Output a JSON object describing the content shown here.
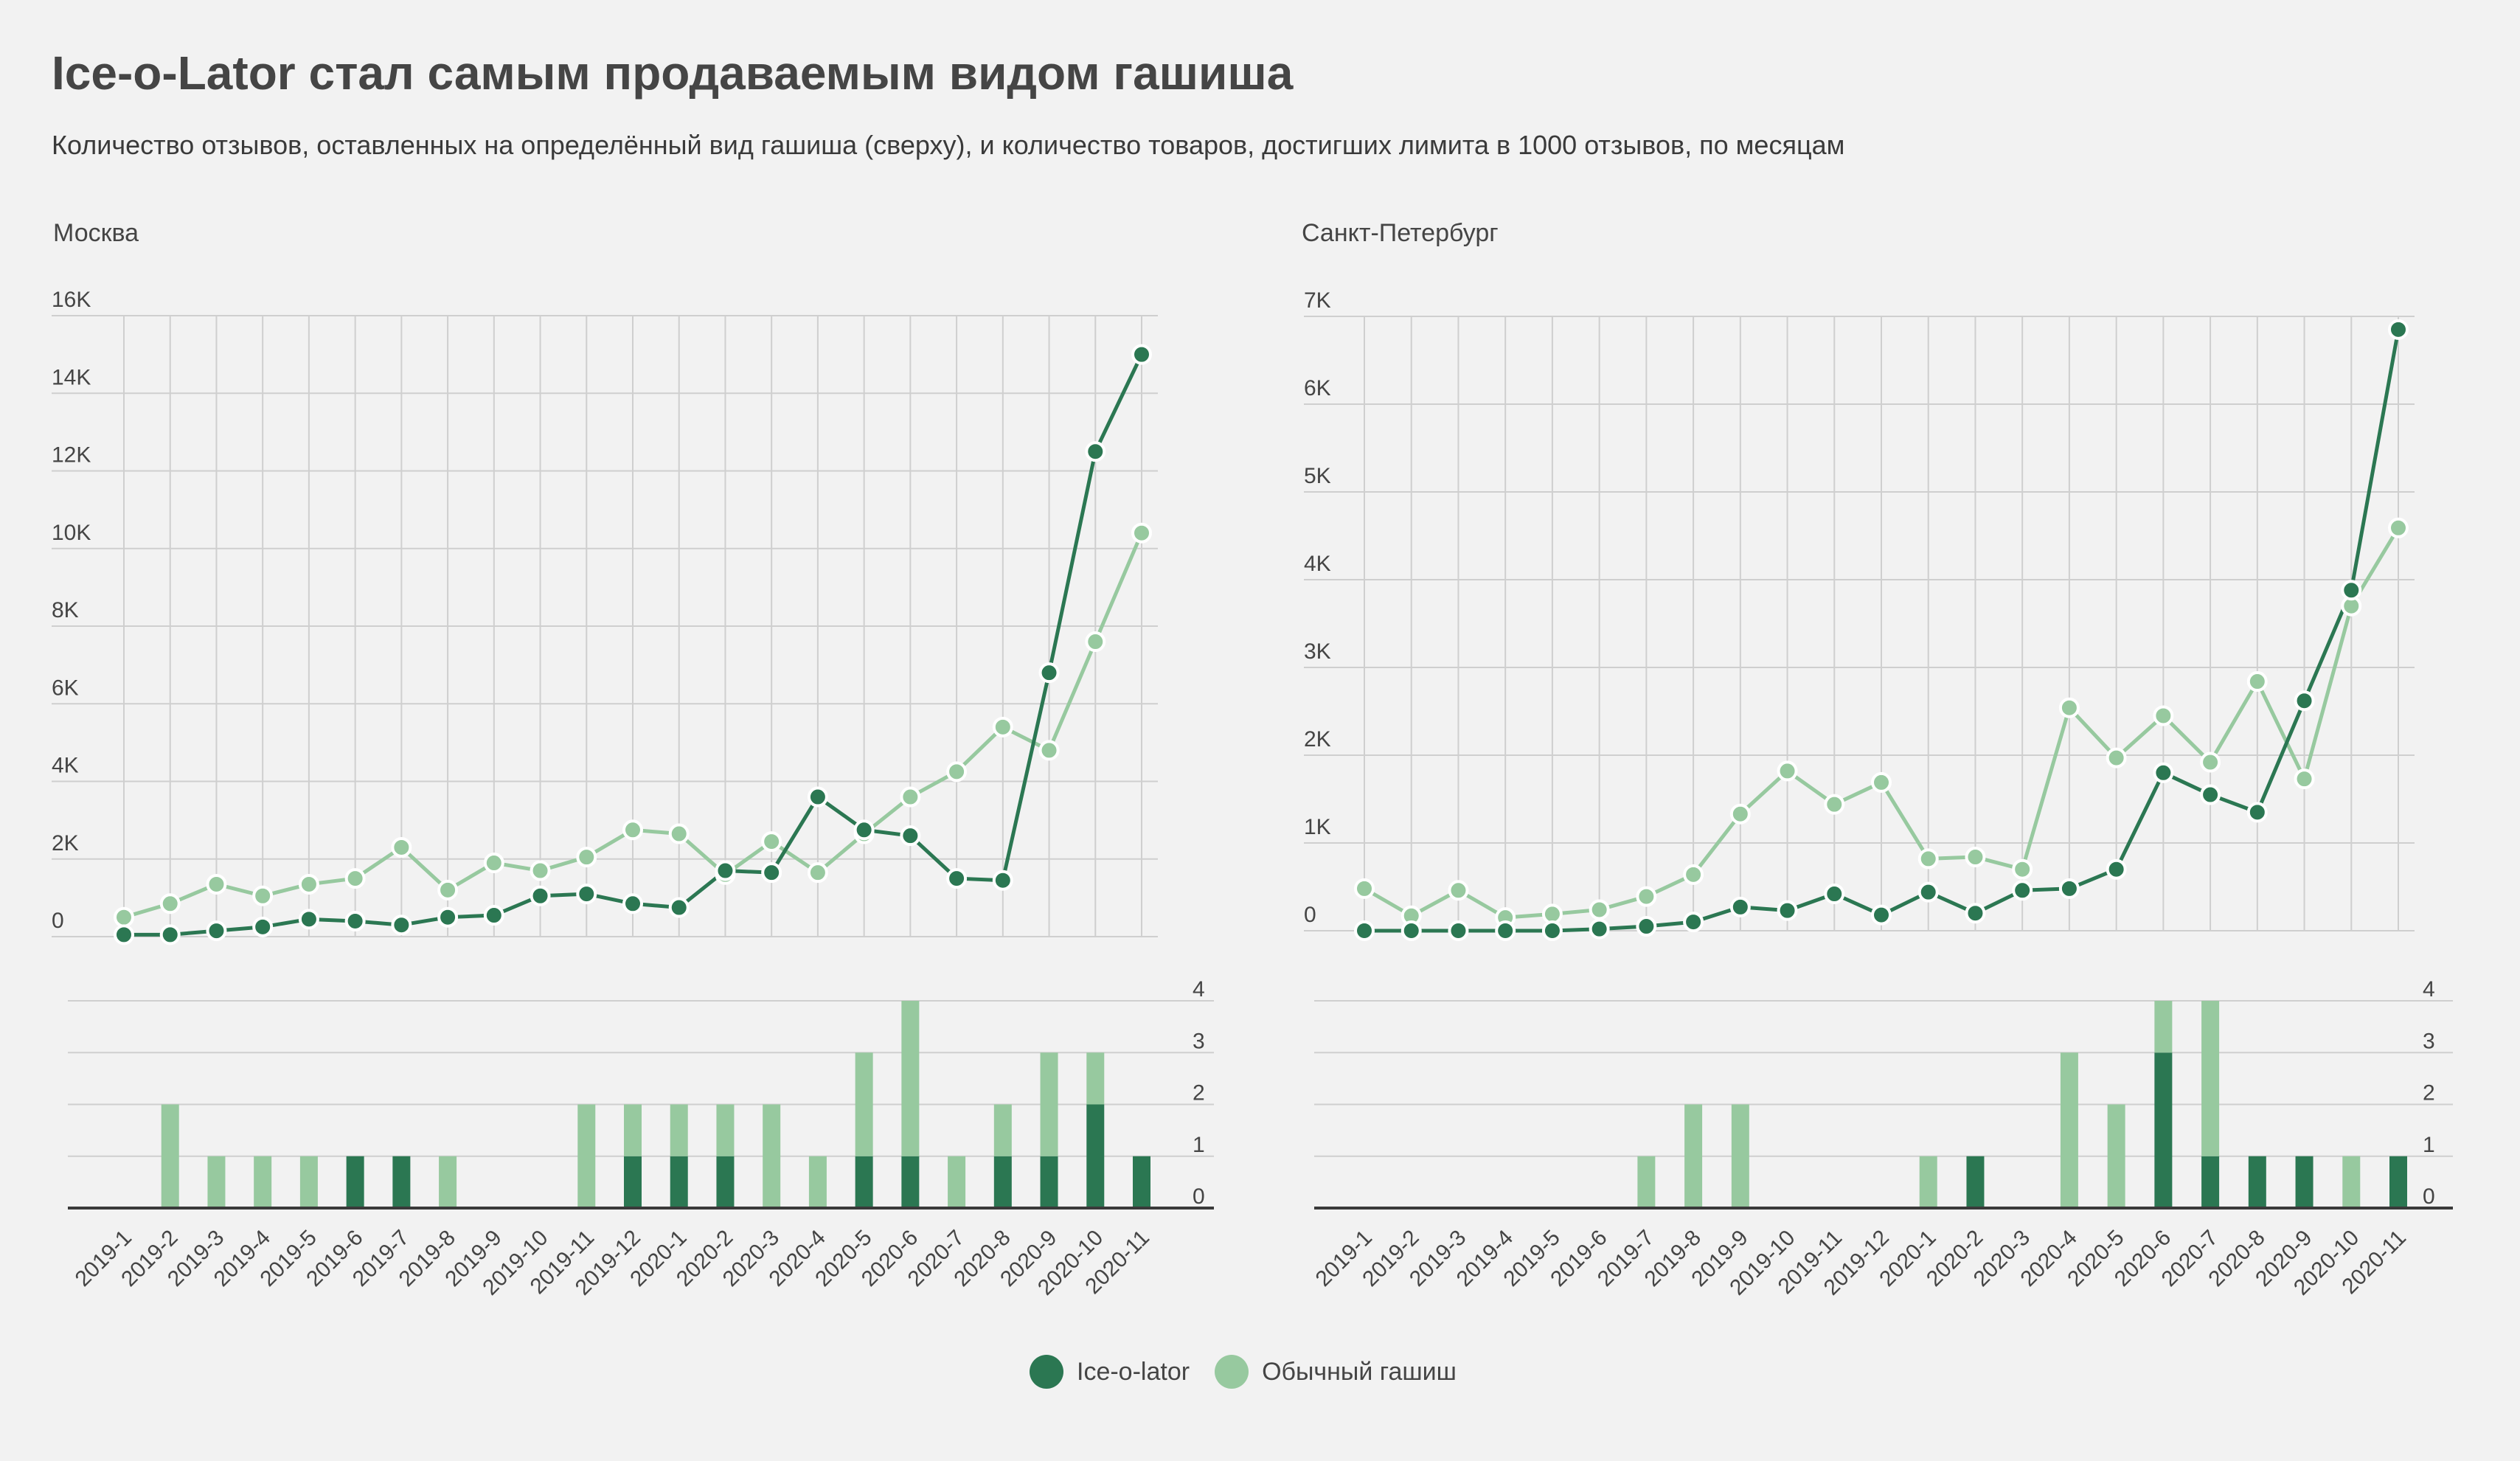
{
  "title": "Ice-o-Lator стал самым продаваемым видом гашиша",
  "subtitle": "Количество отзывов, оставленных на определённый вид гашиша (сверху), и количество товаров, достигших лимита в 1000 отзывов, по месяцам",
  "colors": {
    "ice": "#2b7752",
    "regular": "#97c99f",
    "grid": "#cfcfcf",
    "axis": "#3a3a3a",
    "text": "#454545",
    "background": "#f2f2f2"
  },
  "legend": [
    {
      "label": "Ice-o-lator",
      "color": "#2b7752"
    },
    {
      "label": "Обычный гашиш",
      "color": "#97c99f"
    }
  ],
  "chart_data": [
    {
      "type": "line",
      "title": "Москва",
      "xlabel": "",
      "ylabel": "",
      "categories": [
        "2019-1",
        "2019-2",
        "2019-3",
        "2019-4",
        "2019-5",
        "2019-6",
        "2019-7",
        "2019-8",
        "2019-9",
        "2019-10",
        "2019-11",
        "2019-12",
        "2020-1",
        "2020-2",
        "2020-3",
        "2020-4",
        "2020-5",
        "2020-6",
        "2020-7",
        "2020-8",
        "2020-9",
        "2020-10",
        "2020-11"
      ],
      "ylim": [
        0,
        16000
      ],
      "yticks": [
        0,
        2000,
        4000,
        6000,
        8000,
        10000,
        12000,
        14000,
        16000
      ],
      "ytick_labels": [
        "0",
        "2K",
        "4K",
        "6K",
        "8K",
        "10K",
        "12K",
        "14K",
        "16K"
      ],
      "grid": true,
      "series": [
        {
          "name": "Ice-o-lator",
          "values": [
            50,
            50,
            150,
            250,
            450,
            400,
            300,
            500,
            550,
            1050,
            1100,
            850,
            750,
            1700,
            1650,
            3600,
            2750,
            2600,
            1500,
            1450,
            6800,
            12500,
            15000
          ]
        },
        {
          "name": "Обычный гашиш",
          "values": [
            500,
            850,
            1350,
            1050,
            1350,
            1500,
            2300,
            1200,
            1900,
            1700,
            2050,
            2750,
            2650,
            1600,
            2450,
            1650,
            2650,
            3600,
            4250,
            5400,
            4800,
            7600,
            10400
          ]
        }
      ],
      "bars": {
        "type": "bar",
        "stacked": true,
        "ylim": [
          0,
          4
        ],
        "yticks": [
          0,
          1,
          2,
          3,
          4
        ],
        "series": [
          {
            "name": "Ice-o-lator",
            "values": [
              0,
              0,
              0,
              0,
              0,
              1,
              1,
              0,
              0,
              0,
              0,
              1,
              1,
              1,
              0,
              0,
              1,
              1,
              0,
              1,
              1,
              2,
              1
            ]
          },
          {
            "name": "Обычный гашиш",
            "values": [
              0,
              2,
              1,
              1,
              1,
              0,
              0,
              1,
              0,
              0,
              2,
              1,
              1,
              1,
              2,
              1,
              2,
              3,
              1,
              1,
              2,
              1,
              0
            ]
          }
        ]
      }
    },
    {
      "type": "line",
      "title": "Санкт-Петербург",
      "xlabel": "",
      "ylabel": "",
      "categories": [
        "2019-1",
        "2019-2",
        "2019-3",
        "2019-4",
        "2019-5",
        "2019-6",
        "2019-7",
        "2019-8",
        "2019-9",
        "2019-10",
        "2019-11",
        "2019-12",
        "2020-1",
        "2020-2",
        "2020-3",
        "2020-4",
        "2020-5",
        "2020-6",
        "2020-7",
        "2020-8",
        "2020-9",
        "2020-10",
        "2020-11"
      ],
      "ylim": [
        0,
        7000
      ],
      "yticks": [
        0,
        1000,
        2000,
        3000,
        4000,
        5000,
        6000,
        7000
      ],
      "ytick_labels": [
        "0",
        "1K",
        "2K",
        "3K",
        "4K",
        "5K",
        "6K",
        "7K"
      ],
      "grid": true,
      "series": [
        {
          "name": "Ice-o-lator",
          "values": [
            0,
            0,
            0,
            0,
            0,
            20,
            50,
            100,
            270,
            230,
            420,
            180,
            440,
            200,
            460,
            480,
            700,
            1800,
            1550,
            1350,
            2620,
            3880,
            6850
          ]
        },
        {
          "name": "Обычный гашиш",
          "values": [
            480,
            170,
            460,
            150,
            190,
            240,
            390,
            640,
            1330,
            1820,
            1440,
            1690,
            820,
            840,
            700,
            2540,
            1970,
            2450,
            1920,
            2840,
            1730,
            3700,
            4590
          ]
        }
      ],
      "bars": {
        "type": "bar",
        "stacked": true,
        "ylim": [
          0,
          4
        ],
        "yticks": [
          0,
          1,
          2,
          3,
          4
        ],
        "series": [
          {
            "name": "Ice-o-lator",
            "values": [
              0,
              0,
              0,
              0,
              0,
              0,
              0,
              0,
              0,
              0,
              0,
              0,
              0,
              1,
              0,
              0,
              0,
              3,
              1,
              1,
              1,
              0,
              1
            ]
          },
          {
            "name": "Обычный гашиш",
            "values": [
              0,
              0,
              0,
              0,
              0,
              0,
              1,
              2,
              2,
              0,
              0,
              0,
              1,
              0,
              0,
              3,
              2,
              1,
              3,
              0,
              0,
              1,
              0
            ]
          }
        ]
      }
    }
  ]
}
